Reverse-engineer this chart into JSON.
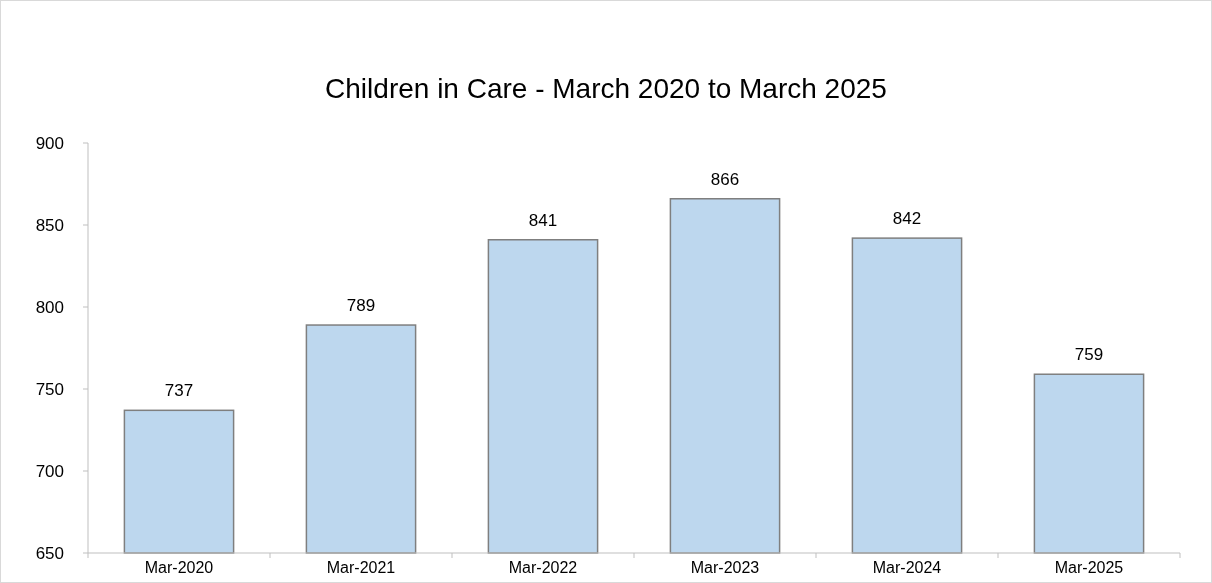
{
  "chart_data": {
    "type": "bar",
    "title": "Children in Care - March 2020 to March 2025",
    "categories": [
      "Mar-2020",
      "Mar-2021",
      "Mar-2022",
      "Mar-2023",
      "Mar-2024",
      "Mar-2025"
    ],
    "values": [
      737,
      789,
      841,
      866,
      842,
      759
    ],
    "color": "#bdd7ee",
    "ylim": [
      650,
      900
    ],
    "yticks": [
      650,
      700,
      750,
      800,
      850,
      900
    ],
    "data_labels": true,
    "grid": false
  }
}
